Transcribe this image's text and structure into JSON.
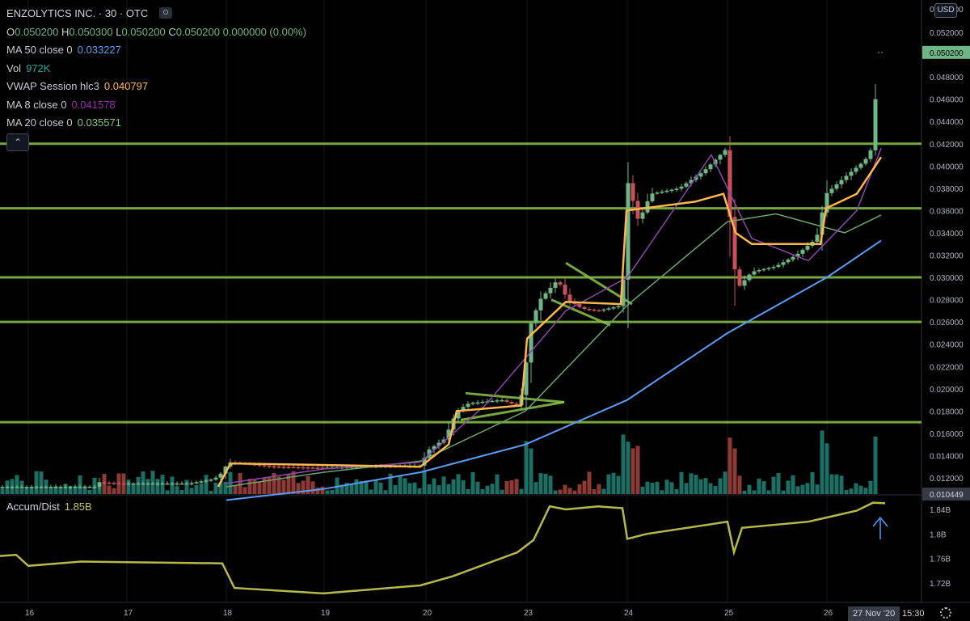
{
  "legend": {
    "symbol": "ENZOLYTICS INC. · 30 · OTC",
    "ohlc": {
      "o_label": "O",
      "o": "0.050200",
      "h_label": "H",
      "h": "0.050300",
      "l_label": "L",
      "l": "0.050200",
      "c_label": "C",
      "c": "0.050200",
      "change": "0.000000 (0.00%)"
    },
    "indicators": [
      {
        "label": "MA 50 close 0",
        "value": "0.033227",
        "color": "#5b9cf6"
      },
      {
        "label": "Vol",
        "value": "972K",
        "color": "#26a69a"
      },
      {
        "label": "VWAP Session hlc3",
        "value": "0.040797",
        "color": "#ffb74d"
      },
      {
        "label": "MA 8 close 0",
        "value": "0.041578",
        "color": "#9c27b0"
      },
      {
        "label": "MA 20 close 0",
        "value": "0.035571",
        "color": "#81c784"
      }
    ],
    "collapse_glyph": "⌃"
  },
  "ad_legend": {
    "label": "Accum/Dist",
    "value": "1.85B"
  },
  "currency": "USD",
  "cursor": {
    "date": "27 Nov '20",
    "time": "15:30"
  },
  "colors": {
    "up": "#6fb587",
    "down": "#c8505a",
    "hline": "#8bc34a",
    "ma50": "#5b9cf6",
    "ma20": "#6aa56e",
    "ma8": "#8e44ad",
    "vwap": "#ffb74d",
    "ad": "#b7b84a",
    "vol_up": "#1e6f63",
    "vol_down": "#8b3a36"
  },
  "chart_data": {
    "type": "candlestick",
    "price_axis": {
      "ticks": [
        "0.052000",
        "0.050000",
        "0.048000",
        "0.046000",
        "0.044000",
        "0.042000",
        "0.040000",
        "0.038000",
        "0.036000",
        "0.034000",
        "0.032000",
        "0.030000",
        "0.028000",
        "0.026000",
        "0.024000",
        "0.022000",
        "0.020000",
        "0.018000",
        "0.016000",
        "0.014000",
        "0.012000"
      ],
      "last_price_label": "0.050200",
      "top_label": "0.054000",
      "bottom_label": "0.010449"
    },
    "x_axis": {
      "tick_labels": [
        "16",
        "17",
        "18",
        "19",
        "20",
        "23",
        "24",
        "25",
        "26",
        "27"
      ]
    },
    "support_resistance": [
      0.042,
      0.0362,
      0.03,
      0.026,
      0.017
    ],
    "ad_axis": {
      "ticks": [
        "1.84B",
        "1.8B",
        "1.76B",
        "1.72B"
      ]
    }
  }
}
